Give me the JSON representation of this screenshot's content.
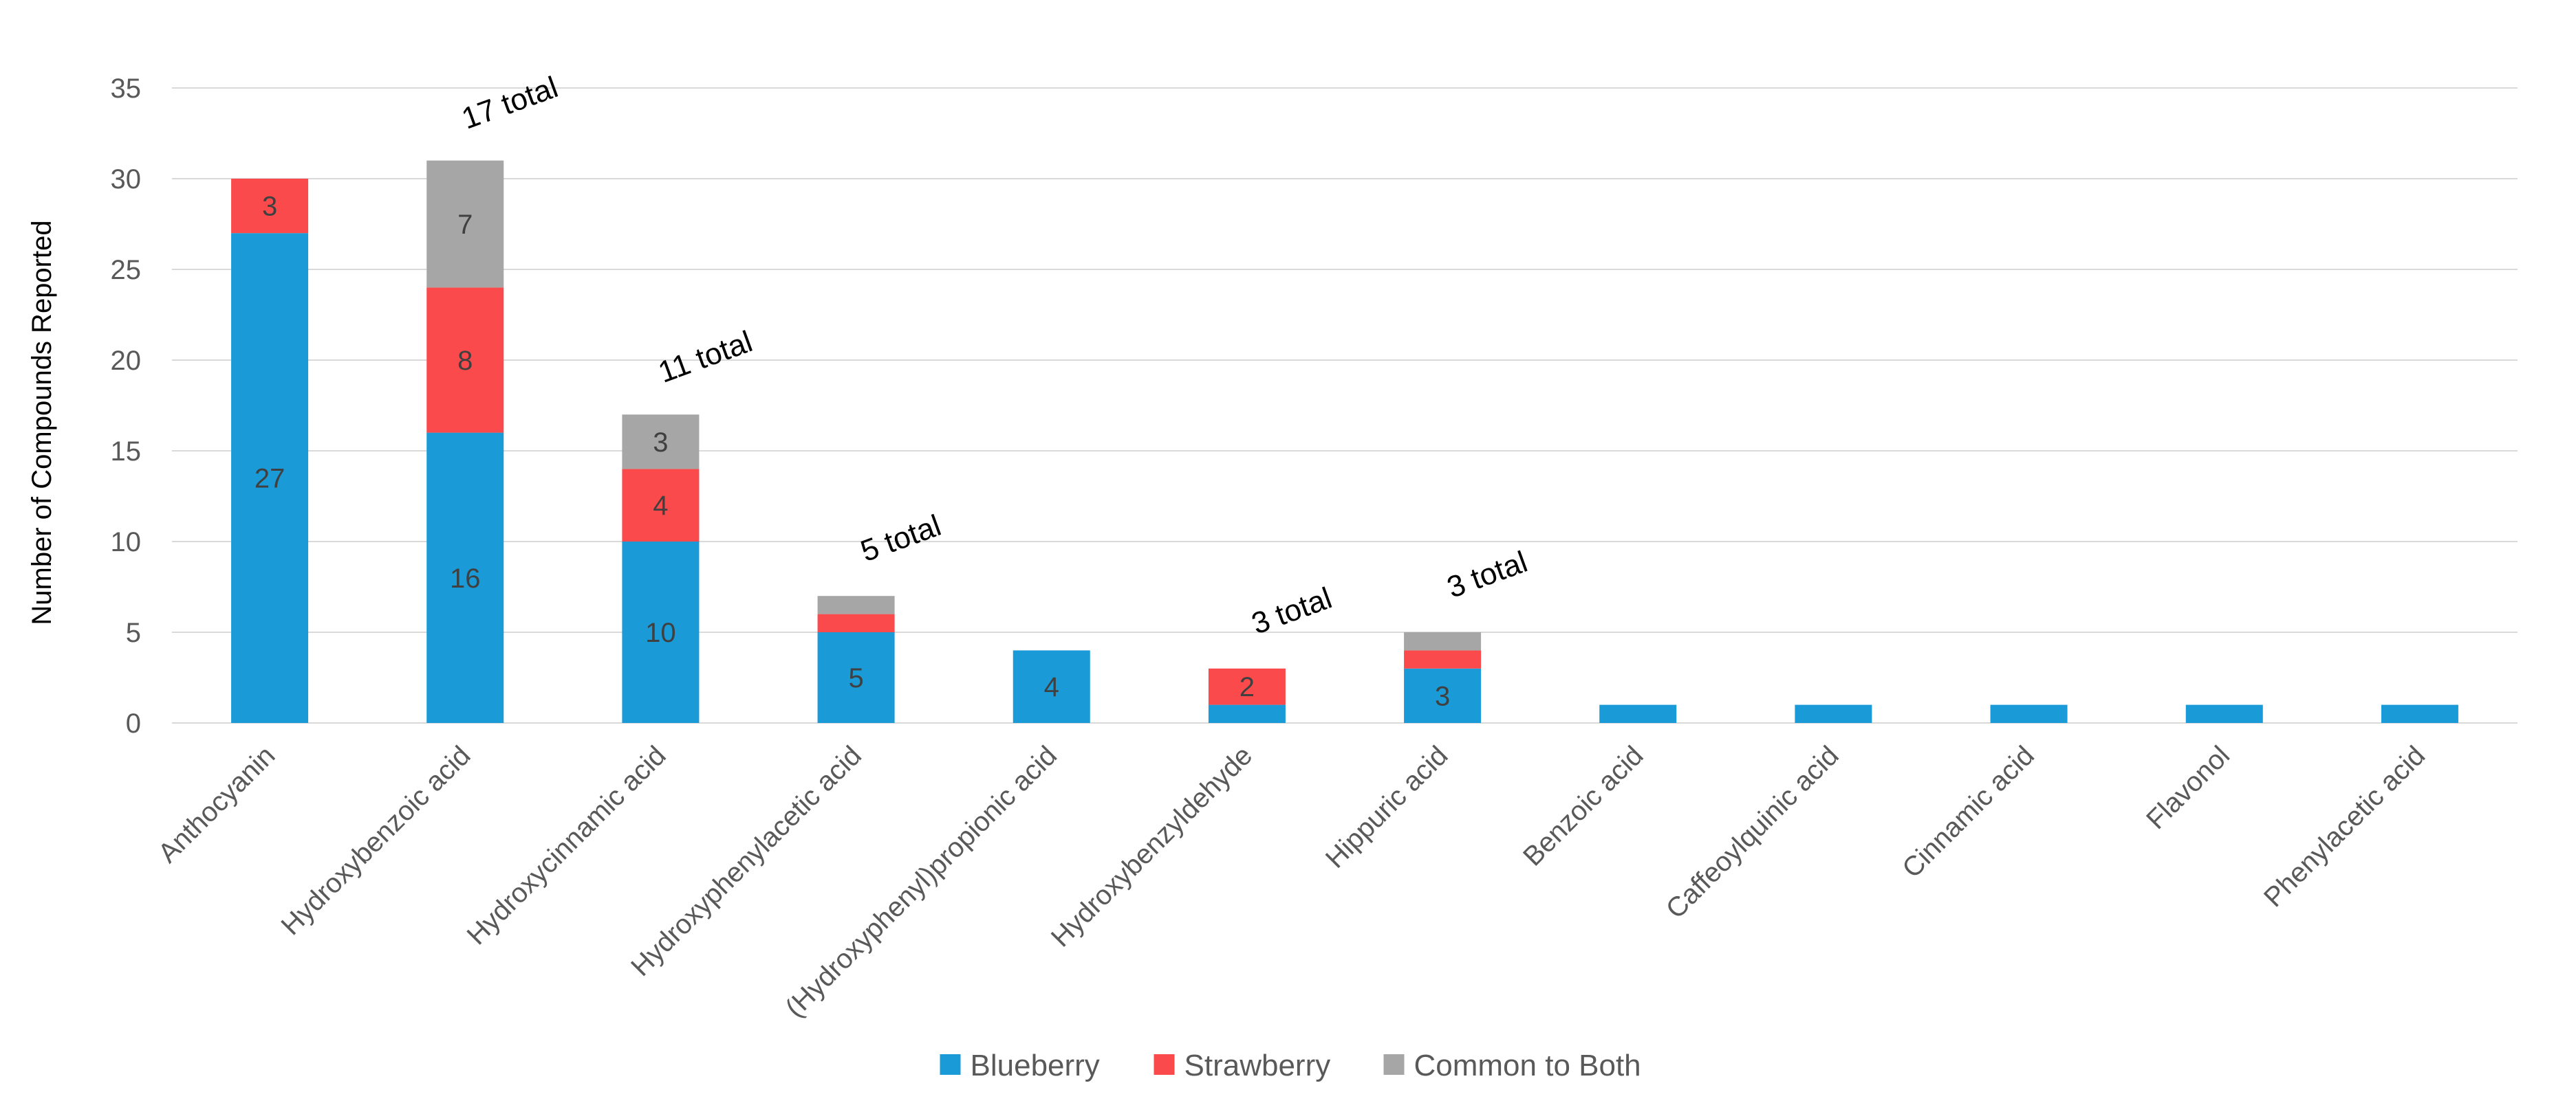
{
  "chart_data": {
    "type": "bar",
    "stacked": true,
    "title": "",
    "xlabel": "",
    "ylabel": "Number of Compounds Reported",
    "ylim": [
      0,
      35
    ],
    "yticks": [
      0,
      5,
      10,
      15,
      20,
      25,
      30,
      35
    ],
    "grid": true,
    "legend_position": "bottom",
    "categories": [
      "Anthocyanin",
      "Hydroxybenzoic acid",
      "Hydroxycinnamic acid",
      "Hydroxyphenylacetic acid",
      "(Hydroxyphenyl)propionic acid",
      "Hydroxybenzyldehyde",
      "Hippuric acid",
      "Benzoic acid",
      "Caffeoylquinic acid",
      "Cinnamic acid",
      "Flavonol",
      "Phenylacetic acid"
    ],
    "series": [
      {
        "name": "Blueberry",
        "color": "#1a9ad6",
        "values": [
          27,
          16,
          10,
          5,
          4,
          1,
          3,
          1,
          1,
          1,
          1,
          1
        ]
      },
      {
        "name": "Strawberry",
        "color": "#fb4a4c",
        "values": [
          3,
          8,
          4,
          1,
          0,
          2,
          1,
          0,
          0,
          0,
          0,
          0
        ]
      },
      {
        "name": "Common to Both",
        "color": "#a6a6a6",
        "values": [
          0,
          7,
          3,
          1,
          0,
          0,
          1,
          0,
          0,
          0,
          0,
          0
        ]
      }
    ],
    "data_labels": [
      {
        "category_index": 0,
        "series_index": 0,
        "text": "27"
      },
      {
        "category_index": 0,
        "series_index": 1,
        "text": "3"
      },
      {
        "category_index": 1,
        "series_index": 0,
        "text": "16"
      },
      {
        "category_index": 1,
        "series_index": 1,
        "text": "8"
      },
      {
        "category_index": 1,
        "series_index": 2,
        "text": "7"
      },
      {
        "category_index": 2,
        "series_index": 0,
        "text": "10"
      },
      {
        "category_index": 2,
        "series_index": 1,
        "text": "4"
      },
      {
        "category_index": 2,
        "series_index": 2,
        "text": "3"
      },
      {
        "category_index": 3,
        "series_index": 0,
        "text": "5"
      },
      {
        "category_index": 4,
        "series_index": 0,
        "text": "4"
      },
      {
        "category_index": 5,
        "series_index": 1,
        "text": "2"
      },
      {
        "category_index": 6,
        "series_index": 0,
        "text": "3"
      }
    ],
    "annotations": [
      {
        "category_index": 1,
        "text": "17 total"
      },
      {
        "category_index": 2,
        "text": "11 total"
      },
      {
        "category_index": 3,
        "text": "5 total"
      },
      {
        "category_index": 5,
        "text": "3 total"
      },
      {
        "category_index": 6,
        "text": "3 total"
      }
    ]
  }
}
